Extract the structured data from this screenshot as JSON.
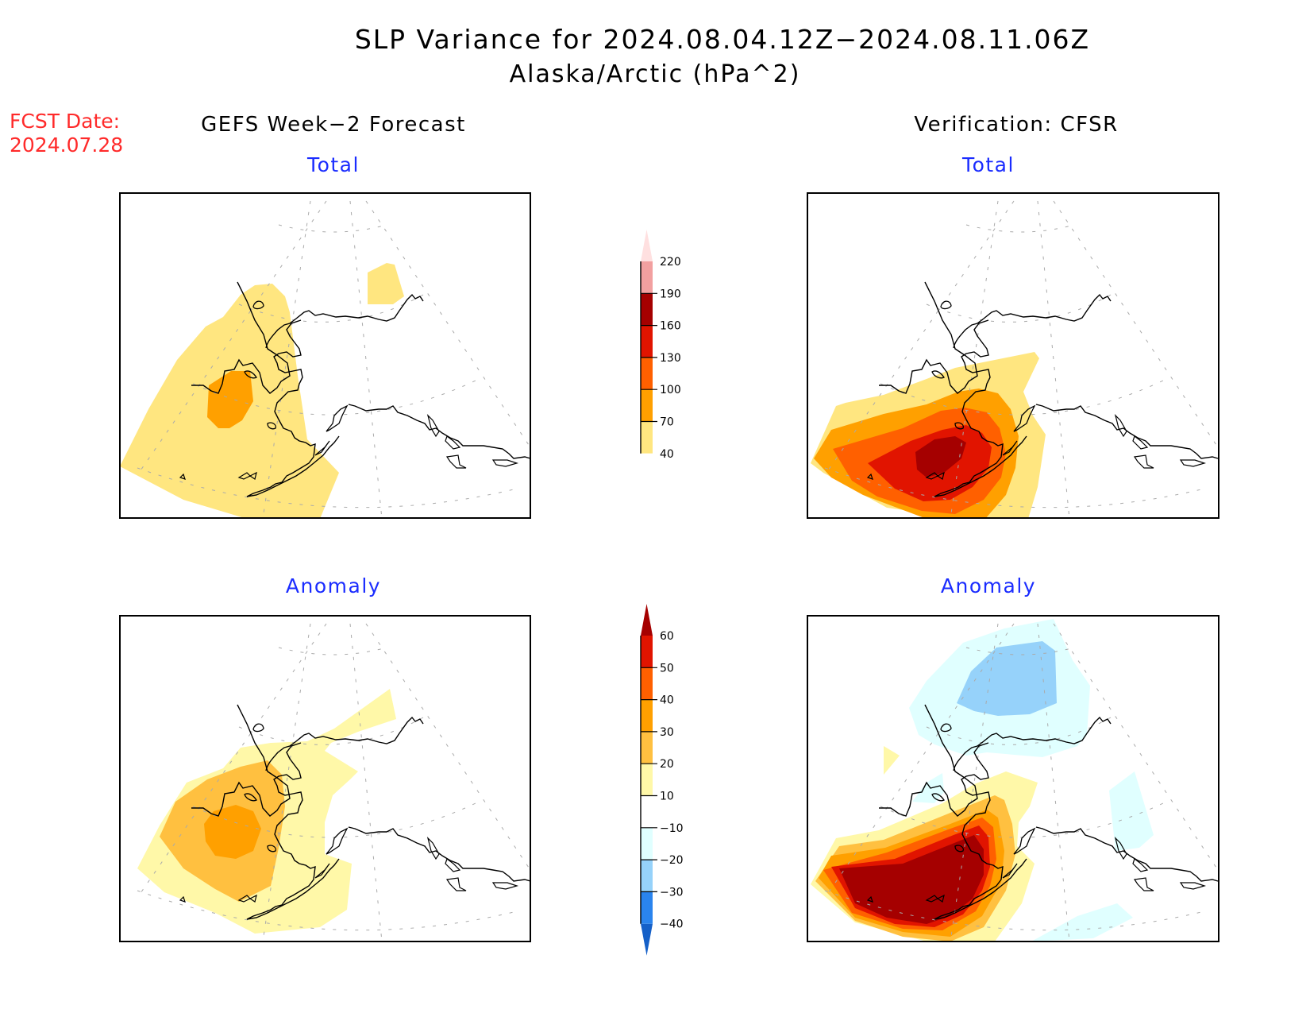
{
  "header": {
    "title": "SLP Variance for 2024.08.04.12Z−2024.08.11.06Z",
    "subtitle": "Alaska/Arctic (hPa^2)",
    "fcst_date_label": "FCST Date:",
    "fcst_date": "2024.07.28",
    "left_column_title": "GEFS Week−2 Forecast",
    "right_column_title": "Verification: CFSR"
  },
  "panels": {
    "top_left": {
      "title": "Total"
    },
    "top_right": {
      "title": "Total"
    },
    "bottom_left": {
      "title": "Anomaly"
    },
    "bottom_right": {
      "title": "Anomaly"
    }
  },
  "colors": {
    "title_blue": "#1a2cff",
    "fcst_red": "#ff2a2a"
  },
  "chart_data": [
    {
      "type": "heatmap",
      "title": "Total",
      "column": "GEFS Week-2 Forecast",
      "units": "hPa^2",
      "levels": [
        40,
        70,
        100,
        130,
        160,
        190,
        220
      ],
      "colors": [
        "#ffe680",
        "#ffa000",
        "#ff6000",
        "#e11400",
        "#a50000",
        "#f2a0a0",
        "#ffe0e0"
      ],
      "features": [
        {
          "region": "Bering Sea / western Alaska broad area",
          "range": "40-70"
        },
        {
          "region": "Central Bering Sea",
          "range": "70-100"
        },
        {
          "region": "Chukotka coast (small patch)",
          "range": "40-70"
        }
      ]
    },
    {
      "type": "heatmap",
      "title": "Total",
      "column": "Verification: CFSR",
      "units": "hPa^2",
      "levels": [
        40,
        70,
        100,
        130,
        160,
        190,
        220
      ],
      "features": [
        {
          "region": "Southern Bering Sea / Aleutians",
          "range": "40-70"
        },
        {
          "region": "Southern Bering Sea / Aleutians",
          "range": "70-100"
        },
        {
          "region": "Southern Bering Sea / Aleutians",
          "range": "100-130"
        },
        {
          "region": "Southern Bering Sea / Aleutians",
          "range": "130-160"
        },
        {
          "region": "Core near Alaska Peninsula",
          "range": "160-190"
        }
      ]
    },
    {
      "type": "heatmap",
      "title": "Anomaly",
      "column": "GEFS Week-2 Forecast",
      "units": "hPa^2",
      "levels": [
        -40,
        -30,
        -20,
        -10,
        10,
        20,
        30,
        40,
        50,
        60
      ],
      "colors": [
        "#1560c8",
        "#2a84ee",
        "#96d2fa",
        "#e0ffff",
        "#ffffff",
        "#fff8a8",
        "#ffc040",
        "#ffa000",
        "#ff6000",
        "#e11400",
        "#a50000"
      ],
      "features": [
        {
          "region": "Bering Sea / Chukchi / western Alaska",
          "range": "10-20"
        },
        {
          "region": "Central Bering Sea",
          "range": "20-30"
        },
        {
          "region": "Central Bering Sea core",
          "range": "30-40"
        }
      ]
    },
    {
      "type": "heatmap",
      "title": "Anomaly",
      "column": "Verification: CFSR",
      "units": "hPa^2",
      "levels": [
        -40,
        -30,
        -20,
        -10,
        10,
        20,
        30,
        40,
        50,
        60
      ],
      "features": [
        {
          "region": "East Siberian Sea",
          "range": "-30 to -20"
        },
        {
          "region": "Arctic coast of Siberia",
          "range": "-20 to -10"
        },
        {
          "region": "Southern Bering Sea / Aleutians",
          "range": ">60"
        },
        {
          "region": "Northern Canada (small)",
          "range": "-20 to -10"
        }
      ]
    }
  ],
  "colorbars": {
    "total": {
      "labels": [
        "220",
        "190",
        "160",
        "130",
        "100",
        "70",
        "40"
      ]
    },
    "anomaly": {
      "labels": [
        "60",
        "50",
        "40",
        "30",
        "20",
        "10",
        "−10",
        "−20",
        "−30",
        "−40"
      ]
    }
  }
}
